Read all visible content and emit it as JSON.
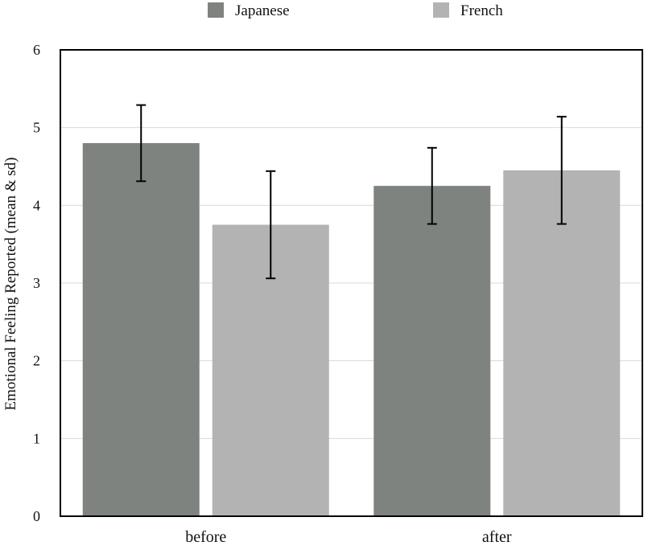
{
  "colors": {
    "Japanese": "#7f8380",
    "French": "#b3b3b3",
    "grid": "#d9d9d9",
    "axis": "#000000"
  },
  "chart_data": {
    "type": "bar",
    "title": "",
    "xlabel": "",
    "ylabel": "Emotional Feeling Reported (mean & sd)",
    "ylim": [
      0,
      6
    ],
    "yticks": [
      0,
      1,
      2,
      3,
      4,
      5,
      6
    ],
    "grid": true,
    "legend_position": "top",
    "categories": [
      "before",
      "after"
    ],
    "series": [
      {
        "name": "Japanese",
        "values": [
          4.8,
          4.25
        ],
        "sd": [
          0.49,
          0.49
        ]
      },
      {
        "name": "French",
        "values": [
          3.75,
          4.45
        ],
        "sd": [
          0.69,
          0.69
        ]
      }
    ]
  }
}
